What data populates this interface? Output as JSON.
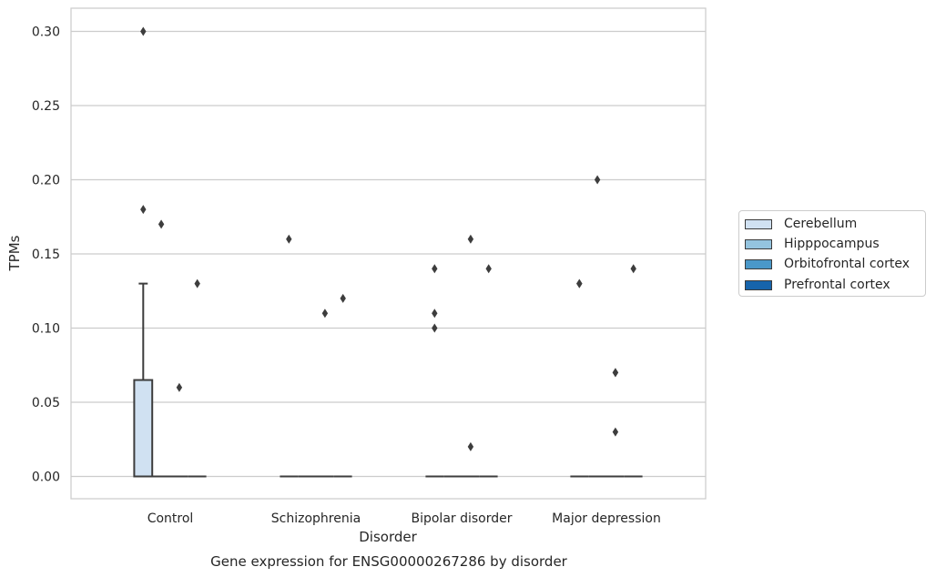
{
  "chart_data": {
    "type": "box",
    "title": "Gene expression for ENSG00000267286 by disorder",
    "xlabel": "Disorder",
    "ylabel": "TPMs",
    "ylim": [
      -0.015,
      0.315
    ],
    "yticks": [
      "0.00",
      "0.05",
      "0.10",
      "0.15",
      "0.20",
      "0.25",
      "0.30"
    ],
    "grid": true,
    "legend_position": "right",
    "categories": [
      "Control",
      "Schizophrenia",
      "Bipolar disorder",
      "Major depression"
    ],
    "series": [
      {
        "name": "Cerebellum",
        "color": "#d0e1f2",
        "boxes": [
          {
            "q1": 0.0,
            "median": 0.0,
            "q3": 0.065,
            "whisker_low": 0.0,
            "whisker_high": 0.13,
            "outliers": [
              0.3,
              0.18
            ]
          },
          {
            "q1": 0.0,
            "median": 0.0,
            "q3": 0.0,
            "whisker_low": 0.0,
            "whisker_high": 0.0,
            "outliers": [
              0.16
            ]
          },
          {
            "q1": 0.0,
            "median": 0.0,
            "q3": 0.0,
            "whisker_low": 0.0,
            "whisker_high": 0.0,
            "outliers": [
              0.14,
              0.11,
              0.1
            ]
          },
          {
            "q1": 0.0,
            "median": 0.0,
            "q3": 0.0,
            "whisker_low": 0.0,
            "whisker_high": 0.0,
            "outliers": [
              0.13,
              0.13
            ]
          }
        ]
      },
      {
        "name": "Hipppocampus",
        "color": "#94c4df",
        "boxes": [
          {
            "q1": 0.0,
            "median": 0.0,
            "q3": 0.0,
            "whisker_low": 0.0,
            "whisker_high": 0.0,
            "outliers": [
              0.17
            ]
          },
          {
            "q1": 0.0,
            "median": 0.0,
            "q3": 0.0,
            "whisker_low": 0.0,
            "whisker_high": 0.0,
            "outliers": []
          },
          {
            "q1": 0.0,
            "median": 0.0,
            "q3": 0.0,
            "whisker_low": 0.0,
            "whisker_high": 0.0,
            "outliers": []
          },
          {
            "q1": 0.0,
            "median": 0.0,
            "q3": 0.0,
            "whisker_low": 0.0,
            "whisker_high": 0.0,
            "outliers": [
              0.2
            ]
          }
        ]
      },
      {
        "name": "Orbitofrontal cortex",
        "color": "#4a98c9",
        "boxes": [
          {
            "q1": 0.0,
            "median": 0.0,
            "q3": 0.0,
            "whisker_low": 0.0,
            "whisker_high": 0.0,
            "outliers": [
              0.06
            ]
          },
          {
            "q1": 0.0,
            "median": 0.0,
            "q3": 0.0,
            "whisker_low": 0.0,
            "whisker_high": 0.0,
            "outliers": [
              0.11
            ]
          },
          {
            "q1": 0.0,
            "median": 0.0,
            "q3": 0.0,
            "whisker_low": 0.0,
            "whisker_high": 0.0,
            "outliers": [
              0.16,
              0.02
            ]
          },
          {
            "q1": 0.0,
            "median": 0.0,
            "q3": 0.0,
            "whisker_low": 0.0,
            "whisker_high": 0.0,
            "outliers": [
              0.07,
              0.07,
              0.03
            ]
          }
        ]
      },
      {
        "name": "Prefrontal cortex",
        "color": "#1764ab",
        "boxes": [
          {
            "q1": 0.0,
            "median": 0.0,
            "q3": 0.0,
            "whisker_low": 0.0,
            "whisker_high": 0.0,
            "outliers": [
              0.13
            ]
          },
          {
            "q1": 0.0,
            "median": 0.0,
            "q3": 0.0,
            "whisker_low": 0.0,
            "whisker_high": 0.0,
            "outliers": [
              0.12
            ]
          },
          {
            "q1": 0.0,
            "median": 0.0,
            "q3": 0.0,
            "whisker_low": 0.0,
            "whisker_high": 0.0,
            "outliers": [
              0.14
            ]
          },
          {
            "q1": 0.0,
            "median": 0.0,
            "q3": 0.0,
            "whisker_low": 0.0,
            "whisker_high": 0.0,
            "outliers": [
              0.14
            ]
          }
        ]
      }
    ]
  }
}
